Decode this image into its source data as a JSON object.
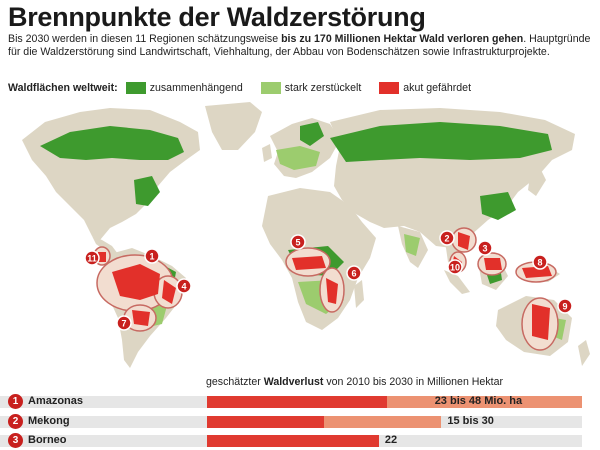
{
  "title": "Brennpunkte der Waldzerstörung",
  "intro": {
    "part1": "Bis 2030 werden in diesen 11 Regionen schätzungsweise ",
    "bold": "bis zu 170 Millionen Hektar Wald verloren gehen",
    "part2": ". Hauptgründe für die Waldzerstörung sind Landwirtschaft, Viehhaltung, der Abbau von Bodenschätzen sowie Infrastrukturprojekte."
  },
  "legend": {
    "title": "Waldflächen weltweit:",
    "items": [
      {
        "label": "zusammenhängend",
        "color": "#3e9a2e"
      },
      {
        "label": "stark zerstückelt",
        "color": "#9ccc6e"
      },
      {
        "label": "akut gefährdet",
        "color": "#e2302a"
      }
    ]
  },
  "colors": {
    "land": "#ddd6c4",
    "forest": "#3e9a2e",
    "fragmented": "#9ccc6e",
    "threatened": "#e2302a",
    "marker": "#c8201e",
    "circle_fill": "#f2ddd0",
    "circle_stroke": "#c76a62"
  },
  "map": {
    "regions": [
      {
        "n": "1"
      },
      {
        "n": "2"
      },
      {
        "n": "3"
      },
      {
        "n": "4"
      },
      {
        "n": "5"
      },
      {
        "n": "6"
      },
      {
        "n": "7"
      },
      {
        "n": "8"
      },
      {
        "n": "9"
      },
      {
        "n": "10"
      },
      {
        "n": "11"
      }
    ]
  },
  "chart": {
    "caption_pre": "geschätzter ",
    "caption_bold": "Waldverlust",
    "caption_post": " von 2010 bis 2030 in Millionen Hektar",
    "rows": [
      {
        "n": "1",
        "name": "Amazonas",
        "min": 23,
        "max": 48,
        "label": "23 bis 48 Mio. ha"
      },
      {
        "n": "2",
        "name": "Mekong",
        "min": 15,
        "max": 30,
        "label": "15 bis 30"
      },
      {
        "n": "3",
        "name": "Borneo",
        "min": 22,
        "max": 22,
        "label": "22"
      }
    ]
  }
}
